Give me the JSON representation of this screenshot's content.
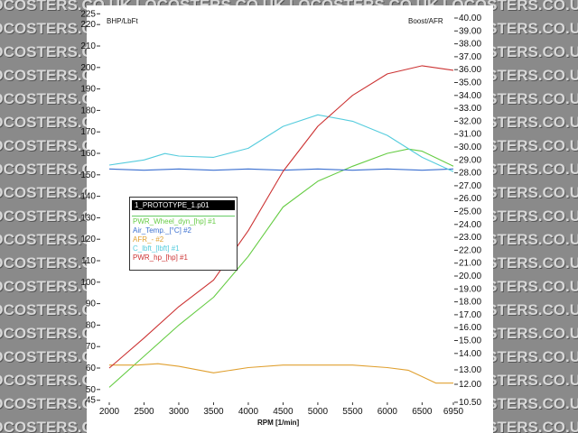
{
  "watermark": "LOCOSTERS.CO.UK",
  "chart_data": {
    "type": "line",
    "title": "",
    "xlabel": "RPM  [1/min]",
    "ylabel": "BHP/LbFt",
    "y2label": "Boost/AFR",
    "xlim": [
      2000,
      6950
    ],
    "ylim": [
      45,
      225
    ],
    "y2lim": [
      10.5,
      40
    ],
    "x_ticks": [
      "2000",
      "2500",
      "3000",
      "3500",
      "4000",
      "4500",
      "5000",
      "5500",
      "6000",
      "6500",
      "6950"
    ],
    "y_ticks": [
      "45",
      "50",
      "60",
      "70",
      "80",
      "90",
      "100",
      "110",
      "120",
      "130",
      "140",
      "150",
      "160",
      "170",
      "180",
      "190",
      "200",
      "210",
      "220",
      "225"
    ],
    "y2_ticks": [
      "40.00",
      "39.00",
      "38.00",
      "37.00",
      "36.00",
      "35.00",
      "34.00",
      "33.00",
      "32.00",
      "31.00",
      "30.00",
      "29.00",
      "28.00",
      "27.00",
      "26.00",
      "25.00",
      "24.00",
      "23.00",
      "22.00",
      "21.00",
      "20.00",
      "19.00",
      "18.00",
      "17.00",
      "16.00",
      "15.00",
      "14.00",
      "13.00",
      "12.00",
      "10.50"
    ],
    "legend": {
      "placement": "left",
      "header": "1_PROTOTYPE_1.p01",
      "entries": [
        "PWR_Wheel_dyn_[hp] #1",
        "Air_Temp._[°C] #2",
        "AFR_- #2",
        "C_lbft_[lbft] #1",
        "PWR_hp_[hp] #1"
      ]
    },
    "series": [
      {
        "name": "PWR_Wheel_dyn_[hp] #1",
        "axis": "left",
        "color": "#66cc44",
        "x": [
          2000,
          2500,
          3000,
          3500,
          4000,
          4500,
          5000,
          5500,
          6000,
          6300,
          6500,
          6950
        ],
        "y": [
          51,
          65.5,
          80,
          93,
          112,
          135,
          147,
          154,
          160,
          162,
          161,
          154
        ]
      },
      {
        "name": "Air_Temp._[°C] #2",
        "axis": "right",
        "color": "#3a6fd0",
        "x": [
          2000,
          2500,
          3000,
          3500,
          4000,
          4500,
          5000,
          5500,
          6000,
          6500,
          6950
        ],
        "y": [
          28.3,
          28.2,
          28.3,
          28.2,
          28.3,
          28.2,
          28.3,
          28.2,
          28.3,
          28.2,
          28.3
        ]
      },
      {
        "name": "AFR_- #2",
        "axis": "right",
        "color": "#e0a030",
        "x": [
          2000,
          2400,
          2700,
          3000,
          3500,
          4000,
          4500,
          5000,
          5500,
          6000,
          6300,
          6500,
          6700,
          6950
        ],
        "y": [
          13.1,
          13.1,
          13.2,
          13.0,
          12.5,
          12.9,
          13.1,
          13.1,
          13.1,
          12.9,
          12.7,
          12.2,
          11.7,
          11.7
        ]
      },
      {
        "name": "C_lbft_[lbft] #1",
        "axis": "right",
        "color": "#55ccdd",
        "x": [
          2000,
          2500,
          2800,
          3000,
          3500,
          4000,
          4500,
          5000,
          5500,
          6000,
          6500,
          6950
        ],
        "y": [
          28.6,
          29.0,
          29.5,
          29.3,
          29.2,
          29.9,
          31.6,
          32.5,
          32.0,
          30.9,
          29.2,
          28.1
        ]
      },
      {
        "name": "PWR_hp_[hp] #1",
        "axis": "left",
        "color": "#cc3333",
        "x": [
          2000,
          2500,
          3000,
          3500,
          4000,
          4500,
          5000,
          5500,
          6000,
          6500,
          6950
        ],
        "y": [
          60,
          74,
          88.6,
          101,
          124,
          151.6,
          172.6,
          187,
          197,
          200.8,
          198.7
        ]
      }
    ]
  }
}
